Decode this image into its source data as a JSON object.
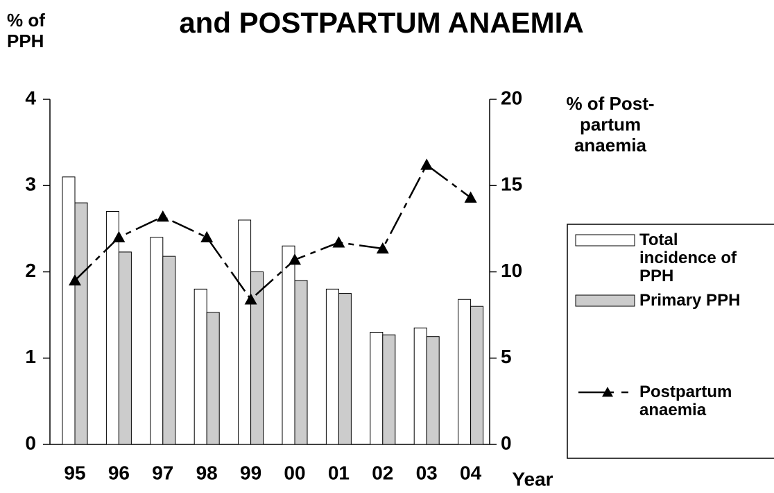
{
  "chart_data": {
    "type": "bar",
    "title": "and POSTPARTUM ANAEMIA",
    "y_label": "% of PPH",
    "y2_label": "% of Post-partum anaemia",
    "x_label": "Year",
    "categories": [
      "95",
      "96",
      "97",
      "98",
      "99",
      "00",
      "01",
      "02",
      "03",
      "04"
    ],
    "series": [
      {
        "name": "Total incidence of PPH",
        "color": "#ffffff",
        "values": [
          3.1,
          2.7,
          2.4,
          1.8,
          2.6,
          2.3,
          1.8,
          1.3,
          1.35,
          1.68
        ]
      },
      {
        "name": "Primary PPH",
        "color": "#cccccc",
        "values": [
          2.8,
          2.23,
          2.18,
          1.53,
          2.0,
          1.9,
          1.75,
          1.27,
          1.25,
          1.6
        ]
      },
      {
        "name": "Postpartum anaemia",
        "type": "line",
        "axis": "y2",
        "color": "#000000",
        "values": [
          9.5,
          12.0,
          13.2,
          12.0,
          8.4,
          10.7,
          11.7,
          11.35,
          16.2,
          14.3
        ]
      }
    ],
    "ylim": [
      0,
      4
    ],
    "yticks": [
      0,
      1,
      2,
      3,
      4
    ],
    "y2lim": [
      0,
      20
    ],
    "y2ticks": [
      0,
      5,
      10,
      15,
      20
    ],
    "legend": "right"
  }
}
